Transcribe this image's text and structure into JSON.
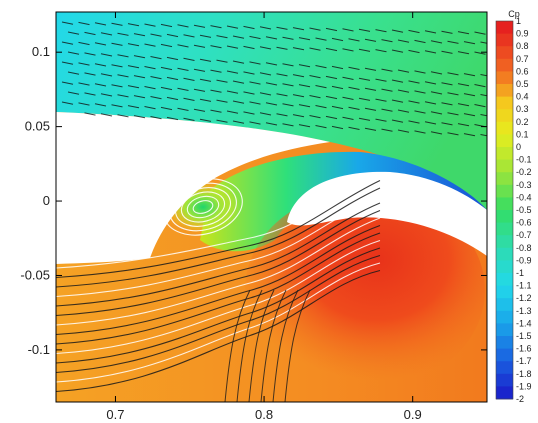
{
  "chart_data": {
    "type": "contour",
    "title": "",
    "xlabel": "",
    "ylabel": "",
    "xlim": [
      0.66,
      0.95
    ],
    "ylim": [
      -0.135,
      0.127
    ],
    "x_ticks": [
      {
        "value": 0.7,
        "label": "0.7"
      },
      {
        "value": 0.8,
        "label": "0.8"
      },
      {
        "value": 0.9,
        "label": "0.9"
      }
    ],
    "y_ticks": [
      {
        "value": 0.1,
        "label": "0.1"
      },
      {
        "value": 0.05,
        "label": "0.05"
      },
      {
        "value": 0,
        "label": "0"
      },
      {
        "value": -0.05,
        "label": "-0.05"
      },
      {
        "value": -0.1,
        "label": "-0.1"
      }
    ],
    "colorbar": {
      "title": "Cp",
      "min": -2,
      "max": 1,
      "levels": [
        {
          "value": 1,
          "label": "1"
        },
        {
          "value": 0.9,
          "label": "0.9"
        },
        {
          "value": 0.8,
          "label": "0.8"
        },
        {
          "value": 0.7,
          "label": "0.7"
        },
        {
          "value": 0.6,
          "label": "0.6"
        },
        {
          "value": 0.5,
          "label": "0.5"
        },
        {
          "value": 0.4,
          "label": "0.4"
        },
        {
          "value": 0.3,
          "label": "0.3"
        },
        {
          "value": 0.2,
          "label": "0.2"
        },
        {
          "value": 0.1,
          "label": "0.1"
        },
        {
          "value": 0,
          "label": "0"
        },
        {
          "value": -0.1,
          "label": "-0.1"
        },
        {
          "value": -0.2,
          "label": "-0.2"
        },
        {
          "value": -0.3,
          "label": "-0.3"
        },
        {
          "value": -0.4,
          "label": "-0.4"
        },
        {
          "value": -0.5,
          "label": "-0.5"
        },
        {
          "value": -0.6,
          "label": "-0.6"
        },
        {
          "value": -0.7,
          "label": "-0.7"
        },
        {
          "value": -0.8,
          "label": "-0.8"
        },
        {
          "value": -0.9,
          "label": "-0.9"
        },
        {
          "value": -1,
          "label": "-1"
        },
        {
          "value": -1.1,
          "label": "-1.1"
        },
        {
          "value": -1.2,
          "label": "-1.2"
        },
        {
          "value": -1.3,
          "label": "-1.3"
        },
        {
          "value": -1.4,
          "label": "-1.4"
        },
        {
          "value": -1.5,
          "label": "-1.5"
        },
        {
          "value": -1.6,
          "label": "-1.6"
        },
        {
          "value": -1.7,
          "label": "-1.7"
        },
        {
          "value": -1.8,
          "label": "-1.8"
        },
        {
          "value": -1.9,
          "label": "-1.9"
        },
        {
          "value": -2,
          "label": "-2"
        }
      ]
    },
    "grid": false
  }
}
